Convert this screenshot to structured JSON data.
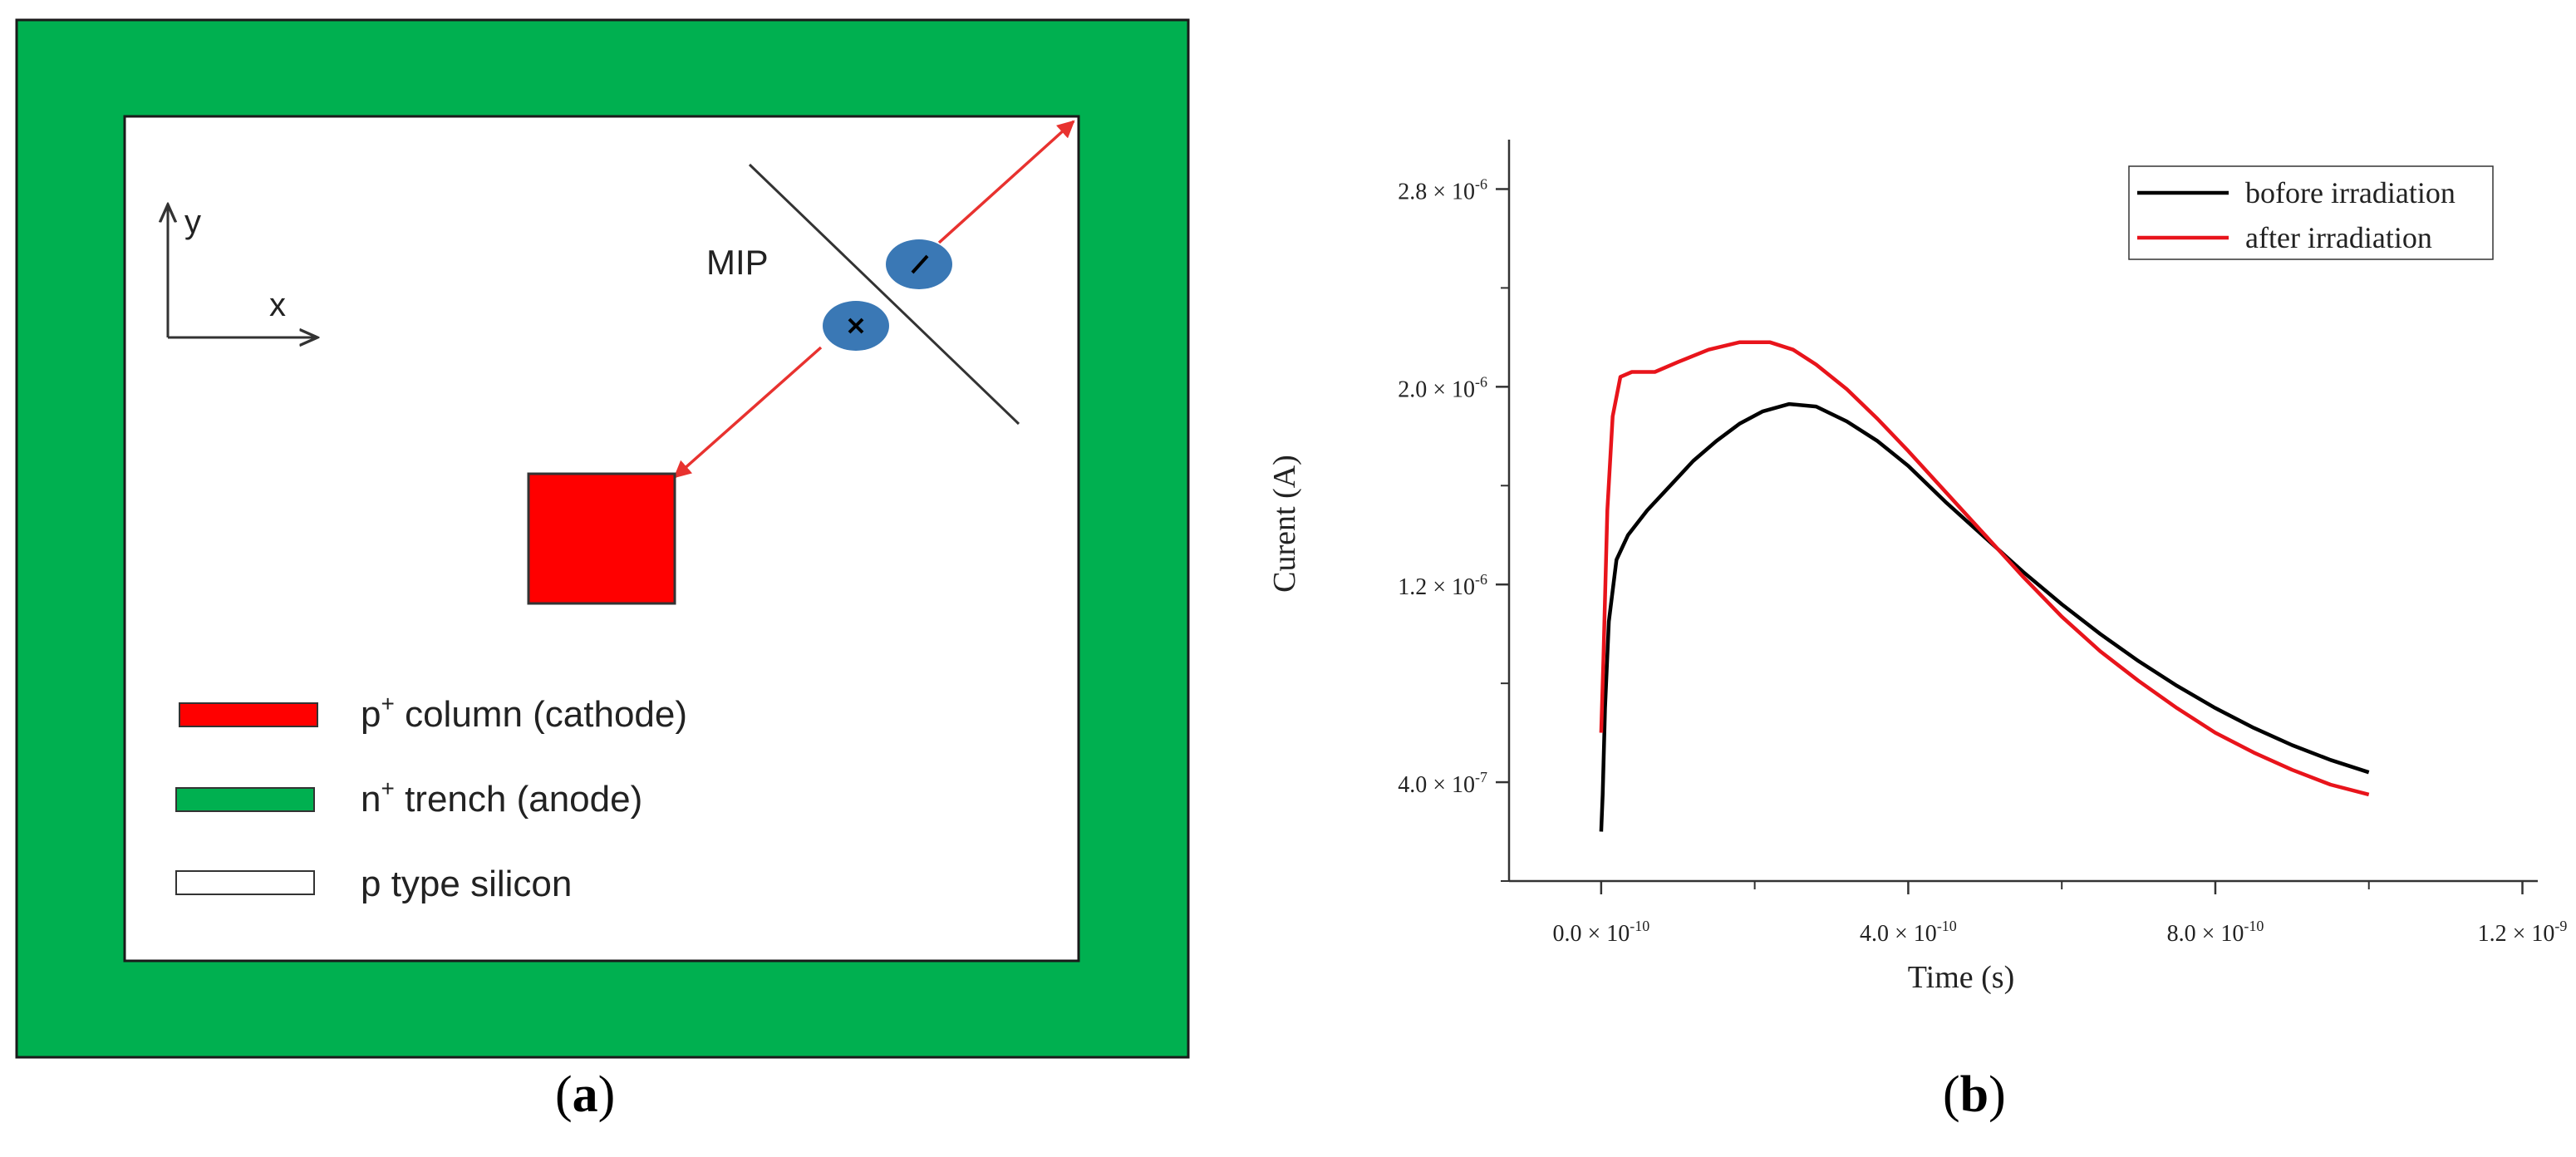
{
  "panel_a": {
    "caption_open": "(",
    "caption_letter": "a",
    "caption_close": ")",
    "axis_y": "y",
    "axis_x": "x",
    "mip_label": "MIP",
    "legend": [
      {
        "label_pre": "p",
        "label_sup": "+",
        "label_post": " column (cathode)",
        "color": "#ff0000"
      },
      {
        "label_pre": "n",
        "label_sup": "+",
        "label_post": " trench (anode)",
        "color": "#00b050"
      },
      {
        "label_pre": "p type silicon",
        "label_sup": "",
        "label_post": "",
        "color": "#ffffff"
      }
    ],
    "colors": {
      "trench": "#00b050",
      "cathode": "#ff0000",
      "carrier": "#3a78b5",
      "arrow": "#e8322f"
    }
  },
  "panel_b": {
    "caption_open": "(",
    "caption_letter": "b",
    "caption_close": ")",
    "chart_data": {
      "type": "line",
      "xlabel": "Time (s)",
      "ylabel": "Curent (A)",
      "xlim": [
        -1.2e-10,
        1.22e-09
      ],
      "ylim": [
        0.0,
        3e-06
      ],
      "x_ticks": [
        {
          "value": 0.0,
          "base": "0.0 × 10",
          "exp": "-10"
        },
        {
          "value": 4e-10,
          "base": "4.0 × 10",
          "exp": "-10"
        },
        {
          "value": 8e-10,
          "base": "8.0 × 10",
          "exp": "-10"
        },
        {
          "value": 1.2e-09,
          "base": "1.2 × 10",
          "exp": "-9"
        }
      ],
      "y_ticks": [
        {
          "value": 4e-07,
          "base": "4.0 × 10",
          "exp": "-7"
        },
        {
          "value": 1.2e-06,
          "base": "1.2 × 10",
          "exp": "-6"
        },
        {
          "value": 2e-06,
          "base": "2.0 × 10",
          "exp": "-6"
        },
        {
          "value": 2.8e-06,
          "base": "2.8 × 10",
          "exp": "-6"
        }
      ],
      "legend_position": "top-right",
      "series": [
        {
          "name": "bofore irradiation",
          "color": "#000000",
          "x": [
            0.0,
            2e-12,
            5e-12,
            1e-11,
            2e-11,
            3.5e-11,
            6e-11,
            9e-11,
            1.2e-10,
            1.5e-10,
            1.8e-10,
            2.1e-10,
            2.45e-10,
            2.8e-10,
            3.2e-10,
            3.6e-10,
            4e-10,
            4.5e-10,
            5e-10,
            5.5e-10,
            6e-10,
            6.5e-10,
            7e-10,
            7.5e-10,
            8e-10,
            8.5e-10,
            9e-10,
            9.5e-10,
            1e-09
          ],
          "y": [
            2e-07,
            3.5e-07,
            7e-07,
            1.05e-06,
            1.3e-06,
            1.4e-06,
            1.5e-06,
            1.6e-06,
            1.7e-06,
            1.78e-06,
            1.85e-06,
            1.9e-06,
            1.93e-06,
            1.92e-06,
            1.86e-06,
            1.78e-06,
            1.68e-06,
            1.53e-06,
            1.39e-06,
            1.25e-06,
            1.12e-06,
            1e-06,
            8.9e-07,
            7.9e-07,
            7e-07,
            6.2e-07,
            5.5e-07,
            4.9e-07,
            4.4e-07
          ]
        },
        {
          "name": "after irradiation",
          "color": "#e8141b",
          "x": [
            0.0,
            3e-12,
            8e-12,
            1.5e-11,
            2.5e-11,
            4e-11,
            7e-11,
            1e-10,
            1.4e-10,
            1.8e-10,
            2.2e-10,
            2.5e-10,
            2.8e-10,
            3.2e-10,
            3.6e-10,
            4e-10,
            4.5e-10,
            5e-10,
            5.5e-10,
            6e-10,
            6.5e-10,
            7e-10,
            7.5e-10,
            8e-10,
            8.5e-10,
            9e-10,
            9.5e-10,
            1e-09
          ],
          "y": [
            6e-07,
            9e-07,
            1.5e-06,
            1.88e-06,
            2.04e-06,
            2.06e-06,
            2.06e-06,
            2.1e-06,
            2.15e-06,
            2.18e-06,
            2.18e-06,
            2.15e-06,
            2.09e-06,
            1.99e-06,
            1.87e-06,
            1.74e-06,
            1.57e-06,
            1.4e-06,
            1.23e-06,
            1.07e-06,
            9.3e-07,
            8.1e-07,
            7e-07,
            6e-07,
            5.2e-07,
            4.5e-07,
            3.9e-07,
            3.5e-07
          ]
        }
      ]
    }
  }
}
